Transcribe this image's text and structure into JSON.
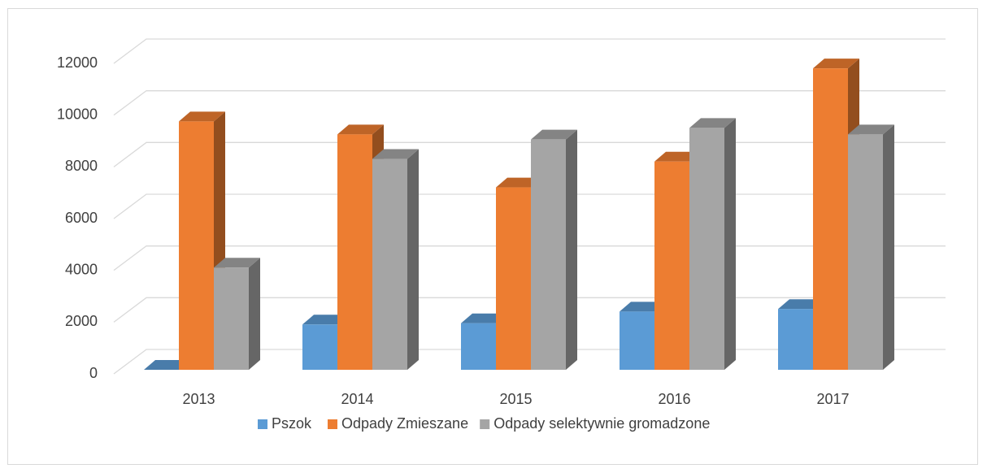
{
  "chart_data": {
    "type": "bar3d",
    "categories": [
      "2013",
      "2014",
      "2015",
      "2016",
      "2017"
    ],
    "series": [
      {
        "name": "Pszok",
        "color": "#5b9bd5",
        "values": [
          0,
          1750,
          1800,
          2250,
          2350
        ]
      },
      {
        "name": "Odpady Zmieszane",
        "color": "#ed7d31",
        "values": [
          9600,
          9100,
          7050,
          8050,
          11650
        ]
      },
      {
        "name": "Odpady selektywnie gromadzone",
        "color": "#a5a5a5",
        "values": [
          3950,
          8150,
          8900,
          9350,
          9100
        ]
      }
    ],
    "ylim": [
      0,
      12000
    ],
    "yticks": [
      0,
      2000,
      4000,
      6000,
      8000,
      10000,
      12000
    ],
    "grid": true,
    "legend": "bottom"
  }
}
